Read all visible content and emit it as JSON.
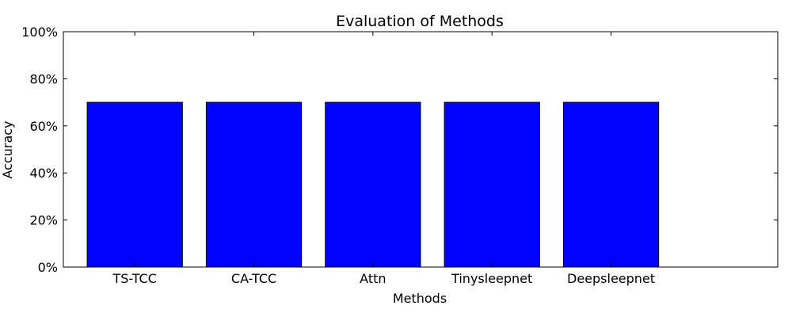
{
  "chart_data": {
    "type": "bar",
    "title": "Evaluation of Methods",
    "xlabel": "Methods",
    "ylabel": "Accuracy",
    "categories": [
      "TS-TCC",
      "CA-TCC",
      "Attn",
      "Tinysleepnet",
      "Deepsleepnet"
    ],
    "values": [
      0.7,
      0.7,
      0.7,
      0.7,
      0.7
    ],
    "ylim": [
      0,
      1
    ],
    "yticks": [
      0,
      0.2,
      0.4,
      0.6,
      0.8,
      1.0
    ],
    "ytick_labels": [
      "0%",
      "20%",
      "40%",
      "60%",
      "80%",
      "100%"
    ],
    "grid": false,
    "bar_color": "#0000ff",
    "edge_color": "#000000"
  }
}
